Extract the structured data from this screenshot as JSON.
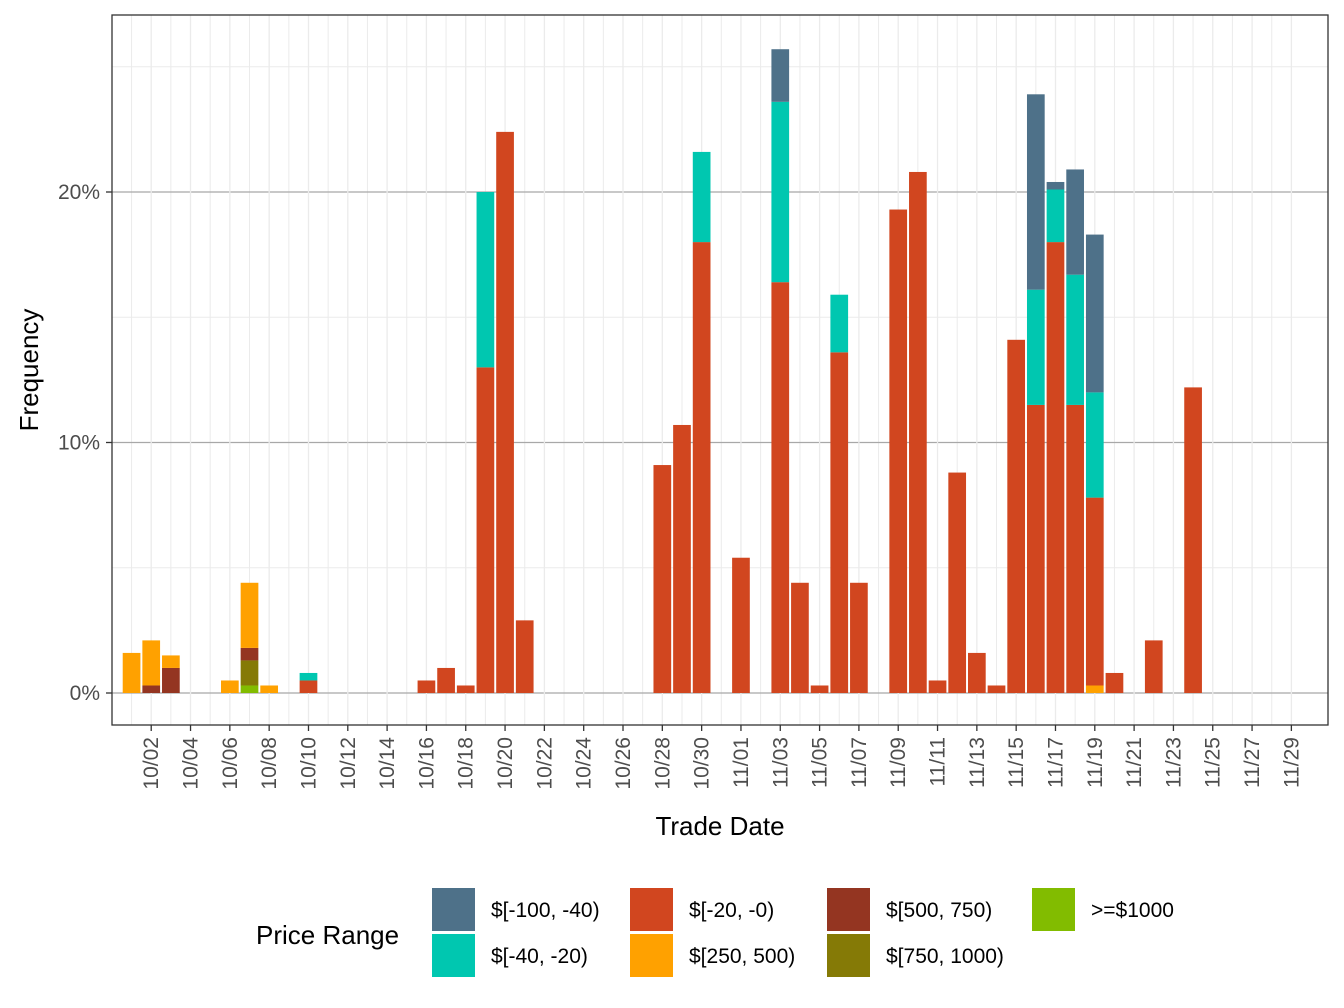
{
  "chart_data": {
    "type": "bar",
    "stacked": true,
    "xlabel": "Trade Date",
    "ylabel": "Frequency",
    "y_format": "percent",
    "ylim": [
      0,
      27.0
    ],
    "yticks": [
      0,
      10,
      20
    ],
    "ytick_labels": [
      "0%",
      "10%",
      "20%"
    ],
    "grid": true,
    "legend_title": "Price Range",
    "legend_position": "bottom",
    "x_axis": {
      "start": "09/30",
      "end": "11/30",
      "tick_labels": [
        "10/02",
        "10/04",
        "10/06",
        "10/08",
        "10/10",
        "10/12",
        "10/14",
        "10/16",
        "10/18",
        "10/20",
        "10/22",
        "10/24",
        "10/26",
        "10/28",
        "10/30",
        "11/01",
        "11/03",
        "11/05",
        "11/07",
        "11/09",
        "11/11",
        "11/13",
        "11/15",
        "11/17",
        "11/19",
        "11/21",
        "11/23",
        "11/25",
        "11/27",
        "11/29"
      ],
      "dates": [
        "10/01",
        "10/02",
        "10/03",
        "10/04",
        "10/05",
        "10/06",
        "10/07",
        "10/08",
        "10/09",
        "10/10",
        "10/11",
        "10/12",
        "10/13",
        "10/14",
        "10/15",
        "10/16",
        "10/17",
        "10/18",
        "10/19",
        "10/20",
        "10/21",
        "10/22",
        "10/23",
        "10/24",
        "10/25",
        "10/26",
        "10/27",
        "10/28",
        "10/29",
        "10/30",
        "10/31",
        "11/01",
        "11/02",
        "11/03",
        "11/04",
        "11/05",
        "11/06",
        "11/07",
        "11/08",
        "11/09",
        "11/10",
        "11/11",
        "11/12",
        "11/13",
        "11/14",
        "11/15",
        "11/16",
        "11/17",
        "11/18",
        "11/19",
        "11/20",
        "11/21",
        "11/22",
        "11/23",
        "11/24",
        "11/25",
        "11/26",
        "11/27",
        "11/28",
        "11/29"
      ]
    },
    "series": [
      {
        "name": "$[-100, -40)",
        "color": "#4e7189",
        "points": [
          {
            "date": "11/03",
            "value": 2.1
          },
          {
            "date": "11/16",
            "value": 7.8
          },
          {
            "date": "11/17",
            "value": 0.3
          },
          {
            "date": "11/18",
            "value": 4.2
          },
          {
            "date": "11/19",
            "value": 6.3
          }
        ]
      },
      {
        "name": "$[-40, -20)",
        "color": "#00c7b0",
        "points": [
          {
            "date": "10/10",
            "value": 0.3
          },
          {
            "date": "10/19",
            "value": 7.0
          },
          {
            "date": "10/30",
            "value": 3.6
          },
          {
            "date": "11/03",
            "value": 7.2
          },
          {
            "date": "11/06",
            "value": 2.3
          },
          {
            "date": "11/16",
            "value": 4.6
          },
          {
            "date": "11/17",
            "value": 2.1
          },
          {
            "date": "11/18",
            "value": 5.2
          },
          {
            "date": "11/19",
            "value": 4.2
          }
        ]
      },
      {
        "name": "$[-20, -0)",
        "color": "#d1461f",
        "points": [
          {
            "date": "10/10",
            "value": 0.5
          },
          {
            "date": "10/16",
            "value": 0.5
          },
          {
            "date": "10/17",
            "value": 1.0
          },
          {
            "date": "10/18",
            "value": 0.3
          },
          {
            "date": "10/19",
            "value": 13.0
          },
          {
            "date": "10/20",
            "value": 22.4
          },
          {
            "date": "10/21",
            "value": 2.9
          },
          {
            "date": "10/28",
            "value": 9.1
          },
          {
            "date": "10/29",
            "value": 10.7
          },
          {
            "date": "10/30",
            "value": 18.0
          },
          {
            "date": "11/01",
            "value": 5.4
          },
          {
            "date": "11/03",
            "value": 16.4
          },
          {
            "date": "11/04",
            "value": 4.4
          },
          {
            "date": "11/05",
            "value": 0.3
          },
          {
            "date": "11/06",
            "value": 13.6
          },
          {
            "date": "11/07",
            "value": 4.4
          },
          {
            "date": "11/09",
            "value": 19.3
          },
          {
            "date": "11/10",
            "value": 20.8
          },
          {
            "date": "11/11",
            "value": 0.5
          },
          {
            "date": "11/12",
            "value": 8.8
          },
          {
            "date": "11/13",
            "value": 1.6
          },
          {
            "date": "11/14",
            "value": 0.3
          },
          {
            "date": "11/15",
            "value": 14.1
          },
          {
            "date": "11/16",
            "value": 11.5
          },
          {
            "date": "11/17",
            "value": 18.0
          },
          {
            "date": "11/18",
            "value": 11.5
          },
          {
            "date": "11/19",
            "value": 7.5
          },
          {
            "date": "11/20",
            "value": 0.8
          },
          {
            "date": "11/22",
            "value": 2.1
          },
          {
            "date": "11/24",
            "value": 12.2
          }
        ]
      },
      {
        "name": "$[250, 500)",
        "color": "#ffa100",
        "points": [
          {
            "date": "10/01",
            "value": 1.6
          },
          {
            "date": "10/02",
            "value": 1.8
          },
          {
            "date": "10/03",
            "value": 0.5
          },
          {
            "date": "10/06",
            "value": 0.5
          },
          {
            "date": "10/07",
            "value": 2.6
          },
          {
            "date": "10/08",
            "value": 0.3
          },
          {
            "date": "11/19",
            "value": 0.3
          }
        ]
      },
      {
        "name": "$[500, 750)",
        "color": "#943521",
        "points": [
          {
            "date": "10/02",
            "value": 0.3
          },
          {
            "date": "10/03",
            "value": 1.0
          },
          {
            "date": "10/07",
            "value": 0.5
          }
        ]
      },
      {
        "name": "$[750, 1000)",
        "color": "#857a06",
        "points": [
          {
            "date": "10/07",
            "value": 1.0
          }
        ]
      },
      {
        "name": ">=$1000",
        "color": "#82bc00",
        "points": [
          {
            "date": "10/07",
            "value": 0.3
          }
        ]
      }
    ]
  }
}
